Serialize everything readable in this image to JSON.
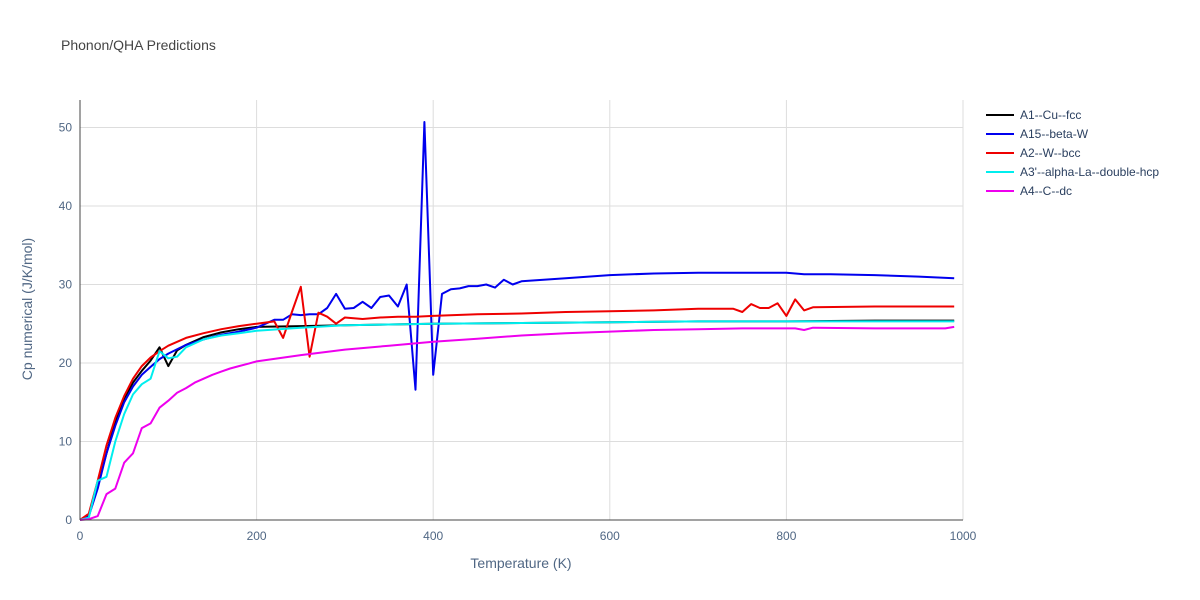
{
  "chart_data": {
    "type": "line",
    "title": "Phonon/QHA Predictions",
    "xlabel": "Temperature (K)",
    "ylabel": "Cp numerical (J/K/mol)",
    "xlim": [
      0,
      1000
    ],
    "ylim": [
      0,
      53.5
    ],
    "xticks": [
      0,
      200,
      400,
      600,
      800,
      1000
    ],
    "yticks": [
      0,
      10,
      20,
      30,
      40,
      50
    ],
    "grid": true,
    "legend_position": "top-right",
    "series": [
      {
        "name": "A1--Cu--fcc",
        "color": "#000000",
        "x": [
          0,
          10,
          20,
          30,
          40,
          50,
          60,
          70,
          80,
          90,
          100,
          110,
          120,
          140,
          160,
          180,
          200,
          250,
          300,
          400,
          500,
          600,
          700,
          800,
          900,
          990
        ],
        "y": [
          0,
          0.5,
          4.5,
          8.5,
          12.5,
          15.5,
          17.5,
          19.0,
          20.3,
          22.0,
          19.6,
          21.6,
          22.3,
          23.3,
          23.9,
          24.3,
          24.6,
          24.7,
          24.8,
          25.0,
          25.1,
          25.2,
          25.3,
          25.3,
          25.4,
          25.4
        ]
      },
      {
        "name": "A15--beta-W",
        "color": "#0000ee",
        "x": [
          0,
          10,
          20,
          30,
          40,
          50,
          60,
          70,
          80,
          90,
          100,
          120,
          140,
          160,
          180,
          200,
          220,
          230,
          240,
          250,
          260,
          270,
          280,
          290,
          300,
          310,
          320,
          330,
          340,
          350,
          360,
          370,
          380,
          390,
          400,
          410,
          420,
          430,
          440,
          450,
          460,
          470,
          480,
          490,
          500,
          550,
          600,
          650,
          700,
          750,
          800,
          820,
          850,
          900,
          950,
          990
        ],
        "y": [
          0,
          0.5,
          4.0,
          8.5,
          12.0,
          15.0,
          17.0,
          18.5,
          19.5,
          20.5,
          21.2,
          22.3,
          23.0,
          23.6,
          24.0,
          24.5,
          25.5,
          25.5,
          26.2,
          26.1,
          26.2,
          26.2,
          27.0,
          28.8,
          26.9,
          27.0,
          27.8,
          27.0,
          28.4,
          28.6,
          27.2,
          30.0,
          16.6,
          50.7,
          18.5,
          28.8,
          29.4,
          29.5,
          29.8,
          29.8,
          30.0,
          29.6,
          30.6,
          30.0,
          30.4,
          30.8,
          31.2,
          31.4,
          31.5,
          31.5,
          31.5,
          31.3,
          31.3,
          31.2,
          31.0,
          30.8
        ]
      },
      {
        "name": "A2--W--bcc",
        "color": "#ee0000",
        "x": [
          0,
          10,
          20,
          30,
          40,
          50,
          60,
          70,
          80,
          90,
          100,
          120,
          140,
          160,
          180,
          200,
          220,
          230,
          240,
          250,
          260,
          270,
          280,
          290,
          300,
          320,
          340,
          360,
          380,
          400,
          450,
          500,
          550,
          600,
          650,
          700,
          740,
          750,
          760,
          770,
          780,
          790,
          800,
          810,
          820,
          830,
          900,
          950,
          990
        ],
        "y": [
          0,
          0.8,
          5.0,
          9.5,
          13.0,
          15.8,
          18.0,
          19.6,
          20.7,
          21.5,
          22.2,
          23.2,
          23.8,
          24.3,
          24.7,
          25.0,
          25.3,
          23.2,
          26.5,
          29.7,
          20.8,
          26.4,
          25.9,
          25.0,
          25.8,
          25.6,
          25.8,
          25.9,
          25.9,
          26.0,
          26.2,
          26.3,
          26.5,
          26.6,
          26.7,
          26.9,
          26.9,
          26.5,
          27.5,
          27.0,
          27.0,
          27.6,
          26.0,
          28.1,
          26.7,
          27.1,
          27.2,
          27.2,
          27.2
        ]
      },
      {
        "name": "A3'--alpha-La--double-hcp",
        "color": "#00eeee",
        "x": [
          0,
          10,
          20,
          30,
          40,
          50,
          60,
          70,
          80,
          90,
          100,
          110,
          120,
          140,
          160,
          180,
          200,
          250,
          300,
          400,
          500,
          600,
          700,
          800,
          900,
          990
        ],
        "y": [
          0,
          0.3,
          5.0,
          5.5,
          10.0,
          13.5,
          16.0,
          17.3,
          18.0,
          21.5,
          20.6,
          20.8,
          22.0,
          23.0,
          23.5,
          23.8,
          24.1,
          24.5,
          24.8,
          25.0,
          25.1,
          25.2,
          25.3,
          25.3,
          25.3,
          25.3
        ]
      },
      {
        "name": "A4--C--dc",
        "color": "#ee00ee",
        "x": [
          0,
          10,
          20,
          30,
          40,
          50,
          60,
          70,
          80,
          90,
          100,
          110,
          120,
          130,
          140,
          150,
          160,
          170,
          180,
          190,
          200,
          250,
          300,
          350,
          400,
          450,
          500,
          550,
          600,
          650,
          700,
          750,
          800,
          810,
          820,
          830,
          900,
          950,
          980,
          990
        ],
        "y": [
          0,
          0.1,
          0.5,
          3.3,
          4.0,
          7.3,
          8.5,
          11.7,
          12.3,
          14.3,
          15.2,
          16.2,
          16.8,
          17.5,
          18.0,
          18.5,
          18.9,
          19.3,
          19.6,
          19.9,
          20.2,
          21.0,
          21.7,
          22.2,
          22.7,
          23.1,
          23.5,
          23.8,
          24.0,
          24.2,
          24.3,
          24.4,
          24.4,
          24.4,
          24.2,
          24.5,
          24.4,
          24.4,
          24.4,
          24.6
        ]
      }
    ]
  }
}
